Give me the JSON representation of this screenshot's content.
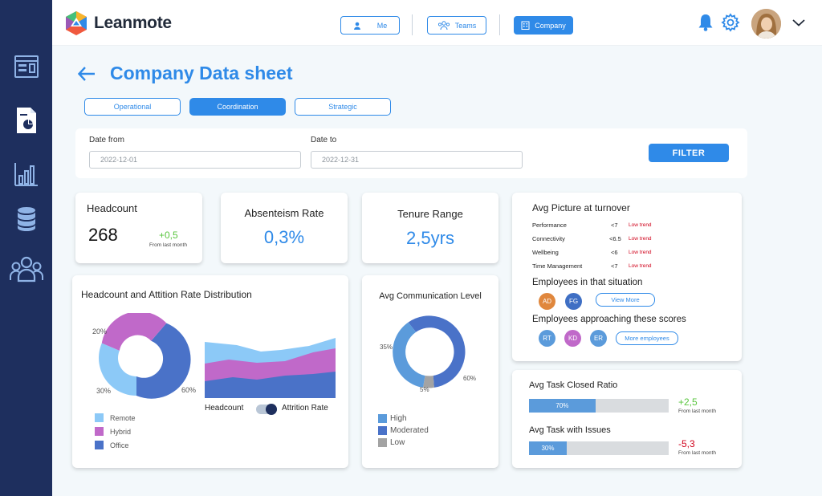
{
  "app": {
    "name": "Leanmote"
  },
  "nav": {
    "me": "Me",
    "teams": "Teams",
    "company": "Company"
  },
  "sidebar": {
    "icons": [
      "dashboard-icon",
      "report-icon",
      "bar-chart-icon",
      "database-icon",
      "people-icon"
    ]
  },
  "page": {
    "title": "Company Data sheet"
  },
  "tabs": [
    {
      "label": "Operational"
    },
    {
      "label": "Coordination"
    },
    {
      "label": "Strategic"
    }
  ],
  "filters": {
    "date_from_label": "Date from",
    "date_from_value": "2022-12-01",
    "date_to_label": "Date to",
    "date_to_value": "2022-12-31",
    "button": "FILTER"
  },
  "kpis": {
    "headcount": {
      "title": "Headcount",
      "value": "268",
      "delta": "+0,5",
      "delta_note": "From last month"
    },
    "absenteeism": {
      "title": "Absenteism Rate",
      "value": "0,3%"
    },
    "tenure": {
      "title": "Tenure Range",
      "value": "2,5yrs"
    }
  },
  "headcount_chart": {
    "title": "Headcount and Attition Rate Distribution",
    "donut_labels": [
      "20%",
      "30%",
      "60%"
    ],
    "donut_values": [
      20,
      30,
      60
    ],
    "legend": [
      "Remote",
      "Hybrid",
      "Office"
    ],
    "toggle_left": "Headcount",
    "toggle_right": "Attrition Rate",
    "colors": {
      "remote": "#8cc9f7",
      "hybrid": "#c069c9",
      "office": "#4a72c8"
    }
  },
  "comm_chart": {
    "title": "Avg Communication Level",
    "labels": [
      "35%",
      "5%",
      "60%"
    ],
    "values": [
      35,
      5,
      60
    ],
    "legend": [
      "High",
      "Moderated",
      "Low"
    ],
    "colors": {
      "high": "#5b9bdb",
      "moderated": "#4a72c8",
      "low": "#a3a3a3"
    }
  },
  "turnover": {
    "title": "Avg Picture at turnover",
    "rows": [
      {
        "metric": "Performance",
        "value": "<7",
        "trend": "Low trend"
      },
      {
        "metric": "Connectivity",
        "value": "<6.5",
        "trend": "Low trend"
      },
      {
        "metric": "Wellbeing",
        "value": "<6",
        "trend": "Low trend"
      },
      {
        "metric": "Time Management",
        "value": "<7",
        "trend": "Low trend"
      }
    ],
    "situation_title": "Employees in that situation",
    "situation_people": [
      {
        "initials": "AD",
        "color": "#e0873d"
      },
      {
        "initials": "FG",
        "color": "#3f6fc4"
      }
    ],
    "view_more": "View More",
    "approach_title": "Employees approaching these scores",
    "approach_people": [
      {
        "initials": "RT",
        "color": "#5b9bdb"
      },
      {
        "initials": "KD",
        "color": "#c069c9"
      },
      {
        "initials": "ER",
        "color": "#5b9bdb"
      }
    ],
    "more_employees": "More employees"
  },
  "tasks": {
    "closed": {
      "title": "Avg Task Closed Ratio",
      "percent": 70,
      "label": "70%",
      "delta": "+2,5",
      "note": "From last month"
    },
    "issues": {
      "title": "Avg Task with Issues",
      "percent": 30,
      "label": "30%",
      "delta": "-5,3",
      "note": "From last month"
    }
  }
}
